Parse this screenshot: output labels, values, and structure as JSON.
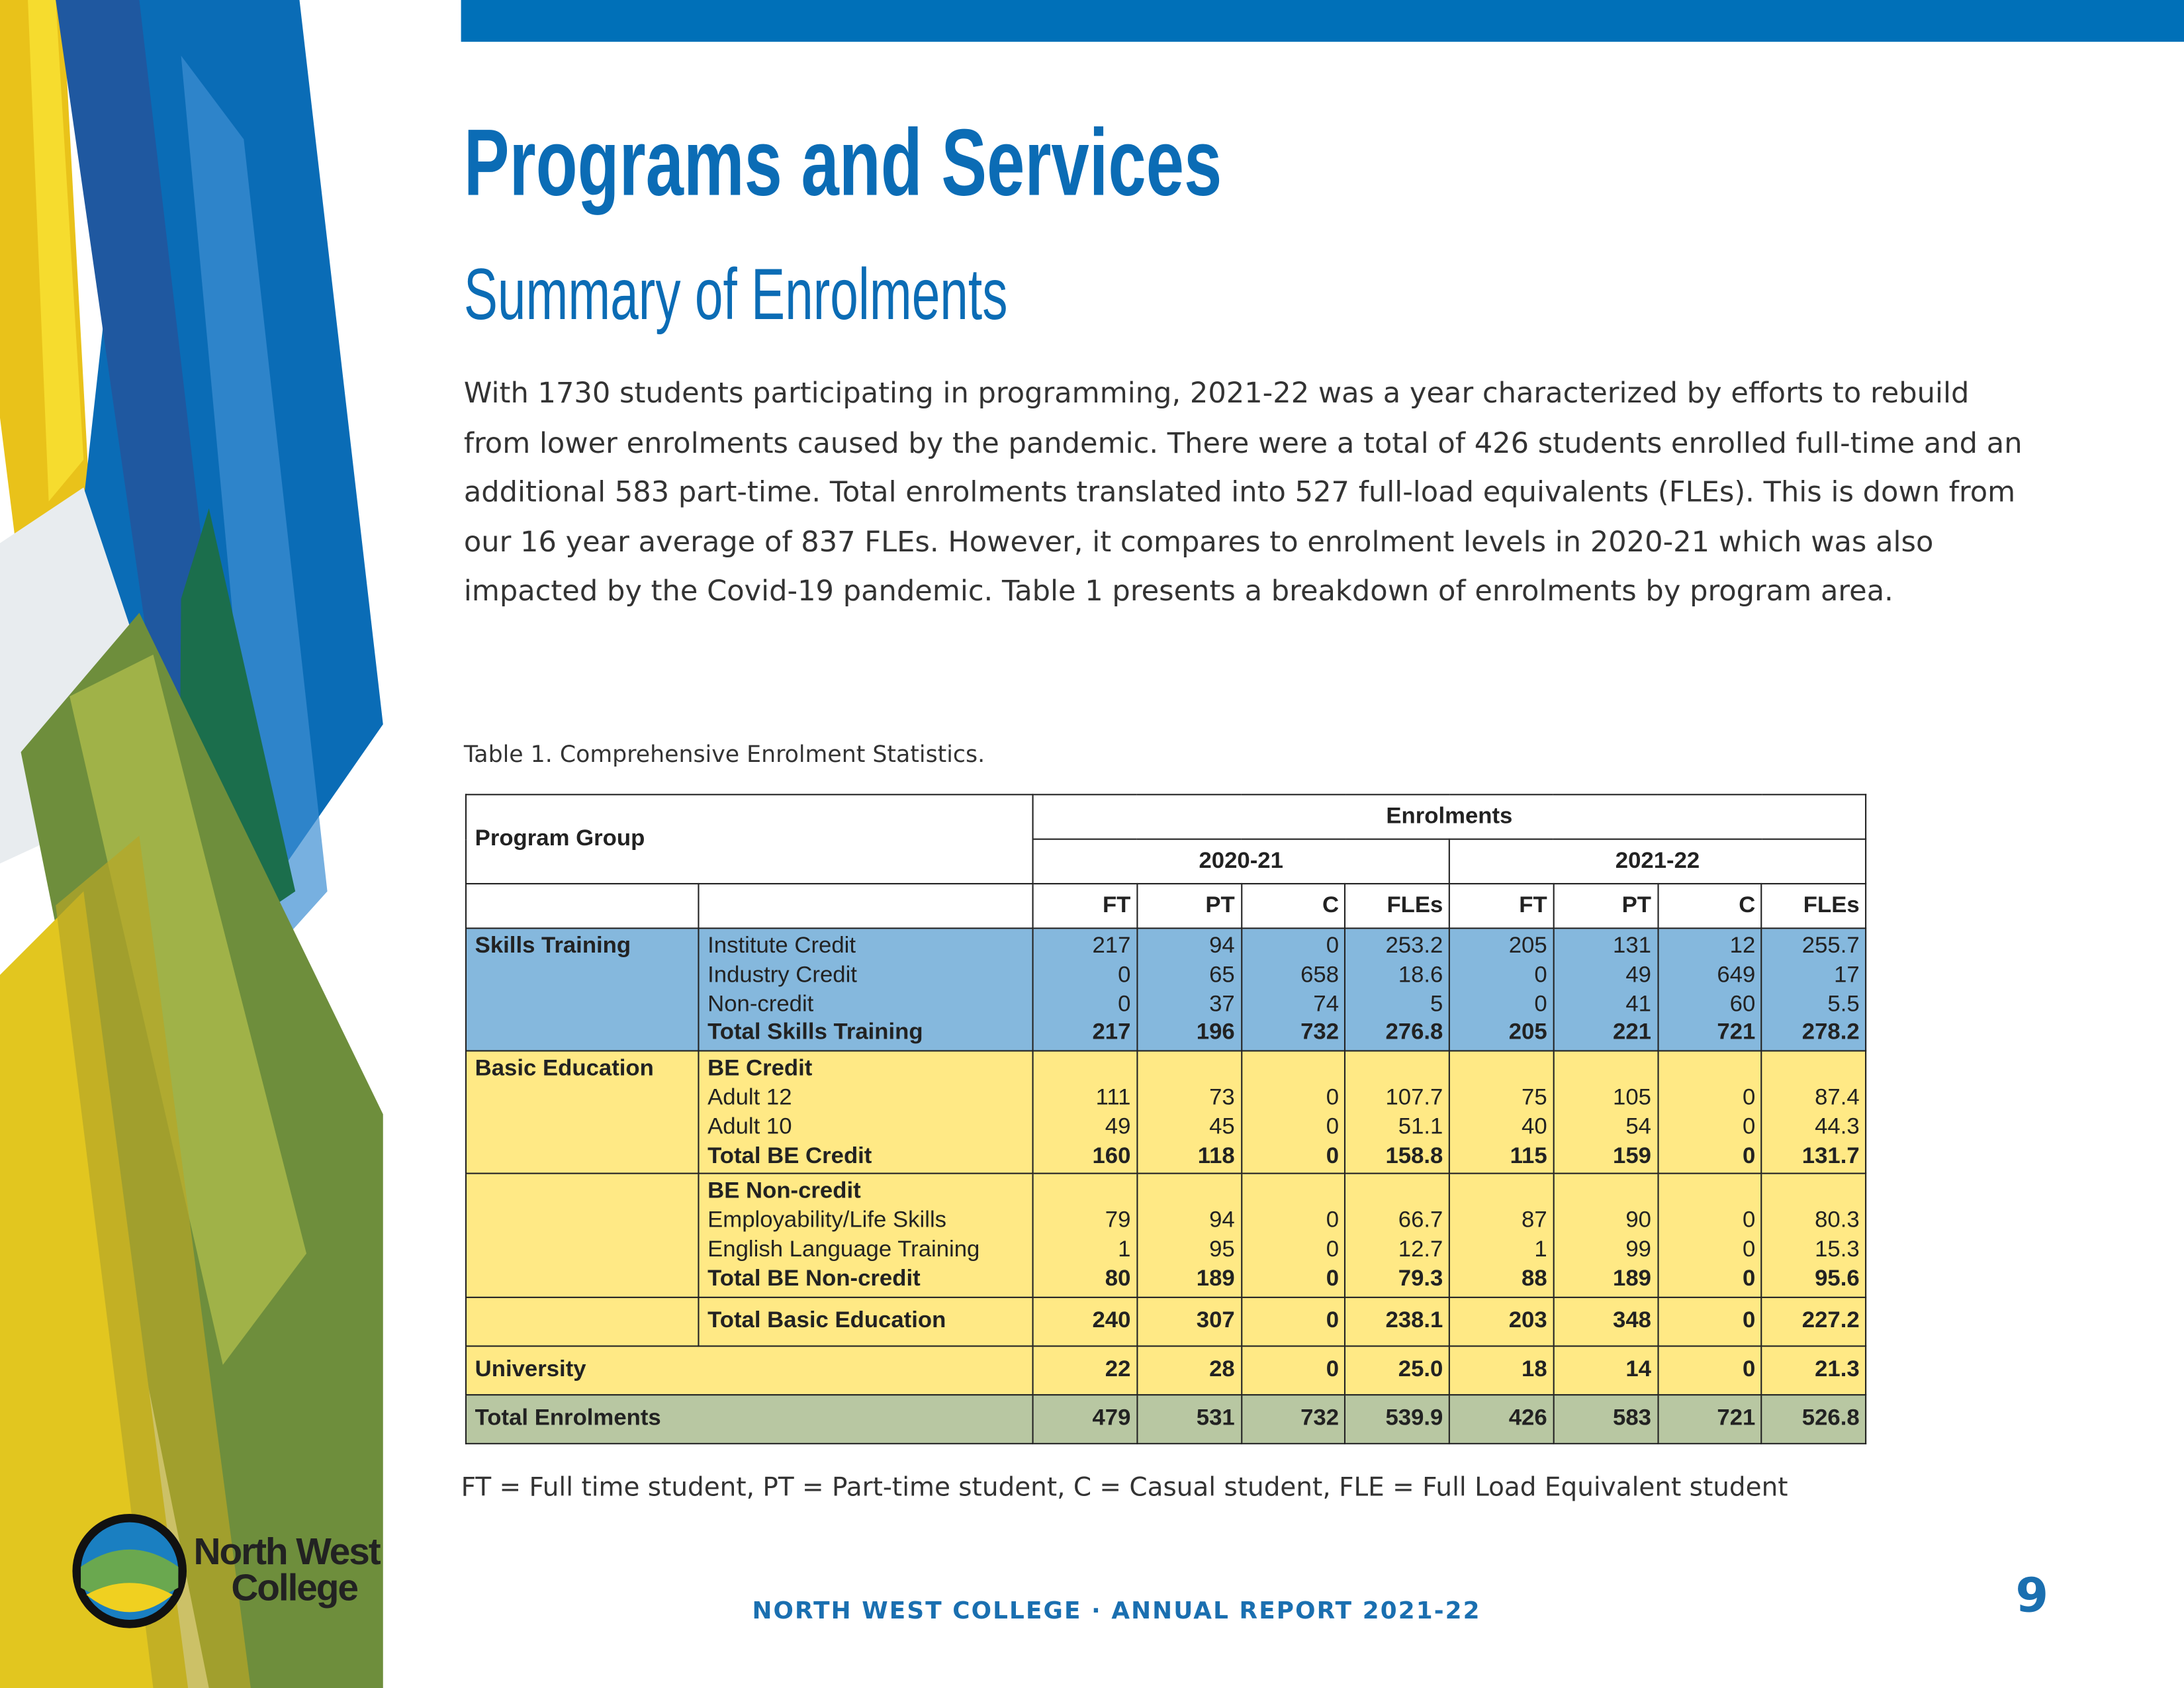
{
  "header": {
    "title": "Programs and Services",
    "subtitle": "Summary of Enrolments"
  },
  "body": {
    "paragraph": "With 1730 students participating in programming, 2021-22 was a year characterized by efforts to rebuild from lower enrolments caused by the pandemic. There were a total of 426 students enrolled full-time and an additional 583 part-time. Total enrolments translated into 527 full-load equivalents (FLEs). This is down from our 16 year average of 837 FLEs. However, it compares to enrolment levels in 2020-21 which was also impacted by the Covid-19 pandemic. Table 1 presents a breakdown of enrolments by program area."
  },
  "table": {
    "caption": "Table 1. Comprehensive Enrolment Statistics.",
    "header": {
      "program_group": "Program Group",
      "enrolments": "Enrolments",
      "years": [
        "2020-21",
        "2021-22"
      ],
      "columns": [
        "FT",
        "PT",
        "C",
        "FLEs"
      ]
    },
    "groups": [
      {
        "name": "Skills Training",
        "color": "#85b8dd",
        "blocks": [
          {
            "items": [
              {
                "label": "Institute Credit",
                "values": [
                  217,
                  94,
                  0,
                  253.2,
                  205,
                  131,
                  12,
                  255.7
                ]
              },
              {
                "label": "Industry Credit",
                "values": [
                  0,
                  65,
                  658,
                  18.6,
                  0,
                  49,
                  649,
                  17
                ]
              },
              {
                "label": "Non-credit",
                "values": [
                  0,
                  37,
                  74,
                  5,
                  0,
                  41,
                  60,
                  5.5
                ]
              }
            ],
            "total": {
              "label": "Total Skills Training",
              "values": [
                217,
                196,
                732,
                276.8,
                205,
                221,
                721,
                278.2
              ]
            }
          }
        ]
      },
      {
        "name": "Basic Education",
        "color": "#ffe985",
        "blocks": [
          {
            "heading": "BE Credit",
            "items": [
              {
                "label": "Adult 12",
                "values": [
                  111,
                  73,
                  0,
                  107.7,
                  75,
                  105,
                  0,
                  87.4
                ]
              },
              {
                "label": "Adult 10",
                "values": [
                  49,
                  45,
                  0,
                  51.1,
                  40,
                  54,
                  0,
                  44.3
                ]
              }
            ],
            "total": {
              "label": "Total BE Credit",
              "values": [
                160,
                118,
                0,
                158.8,
                115,
                159,
                0,
                131.7
              ]
            }
          },
          {
            "heading": "BE Non-credit",
            "items": [
              {
                "label": "Employability/Life Skills",
                "values": [
                  79,
                  94,
                  0,
                  66.7,
                  87,
                  90,
                  0,
                  80.3
                ]
              },
              {
                "label": "English Language Training",
                "values": [
                  1,
                  95,
                  0,
                  12.7,
                  1,
                  99,
                  0,
                  15.3
                ]
              }
            ],
            "total": {
              "label": "Total BE Non-credit",
              "values": [
                80,
                189,
                0,
                79.3,
                88,
                189,
                0,
                95.6
              ]
            }
          }
        ],
        "total": {
          "label": "Total Basic Education",
          "values": [
            240,
            307,
            0,
            238.1,
            203,
            348,
            0,
            227.2
          ]
        }
      }
    ],
    "university": {
      "label": "University",
      "color": "#ffe985",
      "values": [
        22,
        28,
        0,
        "25.0",
        18,
        14,
        0,
        21.3
      ]
    },
    "total": {
      "label": "Total Enrolments",
      "color": "#b8c7a2",
      "values": [
        479,
        531,
        732,
        539.9,
        426,
        583,
        721,
        526.8
      ]
    },
    "footnote": "FT = Full time student, PT = Part-time student, C = Casual student, FLE = Full Load Equivalent student"
  },
  "logo": {
    "line1": "North West",
    "line2": "College"
  },
  "footer": {
    "text": "NORTH WEST COLLEGE · ANNUAL REPORT 2021-22",
    "page": 9
  }
}
